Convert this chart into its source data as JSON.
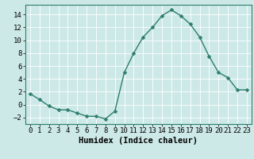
{
  "x": [
    0,
    1,
    2,
    3,
    4,
    5,
    6,
    7,
    8,
    9,
    10,
    11,
    12,
    13,
    14,
    15,
    16,
    17,
    18,
    19,
    20,
    21,
    22,
    23
  ],
  "y": [
    1.7,
    0.8,
    -0.2,
    -0.8,
    -0.8,
    -1.3,
    -1.8,
    -1.8,
    -2.2,
    -1.0,
    5.0,
    8.0,
    10.5,
    12.0,
    13.8,
    14.7,
    13.8,
    12.5,
    10.5,
    7.5,
    5.0,
    4.2,
    2.3,
    2.3
  ],
  "line_color": "#2e7d6e",
  "marker": "D",
  "markersize": 2.5,
  "linewidth": 1.0,
  "bg_color": "#cce9e7",
  "grid_color": "#ffffff",
  "xlabel": "Humidex (Indice chaleur)",
  "xlim": [
    -0.5,
    23.5
  ],
  "ylim": [
    -3,
    15.5
  ],
  "yticks": [
    -2,
    0,
    2,
    4,
    6,
    8,
    10,
    12,
    14
  ],
  "xticks": [
    0,
    1,
    2,
    3,
    4,
    5,
    6,
    7,
    8,
    9,
    10,
    11,
    12,
    13,
    14,
    15,
    16,
    17,
    18,
    19,
    20,
    21,
    22,
    23
  ],
  "xlabel_fontsize": 7.5,
  "tick_fontsize": 6.5,
  "axis_color": "#2e7d6e",
  "spine_color": "#2e7d6e"
}
